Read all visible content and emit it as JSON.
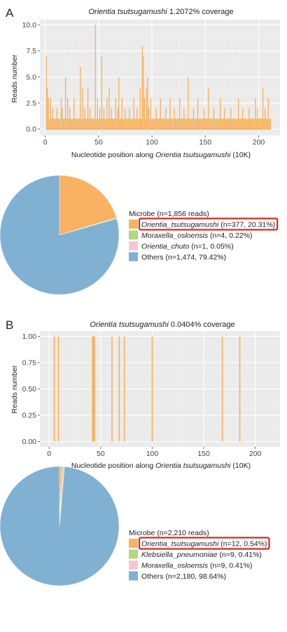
{
  "panels": [
    {
      "letter": "A",
      "coverage": {
        "title_species": "Orientia tsutsugamushi",
        "title_suffix": " 1.2072% coverage",
        "xlabel_prefix": "Nucleotide position along ",
        "xlabel_species": "Orientia tsutsugamushi",
        "xlabel_suffix": " (10K)",
        "ylabel": "Reads number",
        "chart_data": {
          "type": "bar",
          "xlim": [
            -5,
            220
          ],
          "ylim": [
            -0.6,
            10.5
          ],
          "xticks": [
            0,
            50,
            100,
            150,
            200
          ],
          "yticks": [
            "0.0",
            "2.5",
            "5.0",
            "7.5",
            "10.0"
          ],
          "ytick_values": [
            0,
            2.5,
            5,
            7.5,
            10
          ],
          "bar_color": "#f7b15c",
          "grid": true,
          "x": [
            1,
            2,
            3,
            4,
            5,
            6,
            7,
            8,
            9,
            10,
            11,
            12,
            13,
            14,
            15,
            16,
            17,
            18,
            19,
            20,
            21,
            22,
            23,
            24,
            25,
            26,
            27,
            28,
            29,
            30,
            31,
            32,
            33,
            34,
            35,
            36,
            37,
            38,
            39,
            40,
            41,
            42,
            43,
            44,
            45,
            46,
            47,
            48,
            49,
            50,
            51,
            52,
            53,
            54,
            55,
            56,
            57,
            58,
            59,
            60,
            61,
            62,
            63,
            64,
            65,
            66,
            67,
            68,
            69,
            70,
            71,
            72,
            73,
            74,
            75,
            76,
            77,
            78,
            79,
            80,
            81,
            82,
            83,
            84,
            85,
            86,
            87,
            88,
            89,
            90,
            91,
            92,
            93,
            94,
            95,
            96,
            97,
            98,
            99,
            100,
            101,
            102,
            103,
            104,
            105,
            106,
            107,
            108,
            109,
            110,
            111,
            112,
            113,
            114,
            115,
            116,
            117,
            118,
            119,
            120,
            121,
            122,
            123,
            124,
            125,
            126,
            127,
            128,
            129,
            130,
            131,
            132,
            133,
            134,
            135,
            136,
            137,
            138,
            139,
            140,
            141,
            142,
            143,
            144,
            145,
            146,
            147,
            148,
            149,
            150,
            151,
            152,
            153,
            154,
            155,
            156,
            157,
            158,
            159,
            160,
            161,
            162,
            163,
            164,
            165,
            166,
            167,
            168,
            169,
            170,
            171,
            172,
            173,
            174,
            175,
            176,
            177,
            178,
            179,
            180,
            181,
            182,
            183,
            184,
            185,
            186,
            187,
            188,
            189,
            190,
            191,
            192,
            193,
            194,
            195,
            196,
            197,
            198,
            199,
            200,
            201,
            202,
            203,
            204,
            205,
            206,
            207,
            208,
            209,
            210,
            211
          ],
          "values": [
            7,
            4,
            3,
            1,
            3,
            1,
            2,
            1,
            1,
            1,
            2,
            1,
            1,
            1,
            3,
            2,
            1,
            1,
            5,
            1,
            3,
            1,
            2,
            1,
            1,
            1,
            3,
            1,
            1,
            1,
            1,
            1,
            6,
            1,
            4,
            1,
            2,
            1,
            1,
            4,
            1,
            2,
            1,
            1,
            1,
            1,
            10,
            1,
            3,
            1,
            2,
            1,
            7,
            1,
            2,
            1,
            1,
            3,
            1,
            4,
            1,
            2,
            1,
            1,
            1,
            3,
            1,
            2,
            5,
            1,
            1,
            3,
            1,
            1,
            2,
            1,
            1,
            1,
            2,
            1,
            1,
            1,
            3,
            1,
            1,
            2,
            1,
            1,
            4,
            1,
            8,
            7,
            3,
            1,
            4,
            5,
            2,
            1,
            3,
            1,
            1,
            1,
            1,
            2,
            1,
            1,
            1,
            3,
            1,
            1,
            1,
            1,
            2,
            1,
            1,
            1,
            3,
            1,
            1,
            1,
            2,
            1,
            1,
            1,
            1,
            3,
            1,
            1,
            1,
            2,
            1,
            1,
            1,
            5,
            1,
            1,
            1,
            1,
            2,
            1,
            1,
            1,
            3,
            1,
            1,
            1,
            1,
            1,
            2,
            1,
            1,
            1,
            4,
            1,
            1,
            1,
            1,
            2,
            1,
            1,
            1,
            1,
            1,
            3,
            1,
            1,
            1,
            2,
            1,
            1,
            1,
            1,
            1,
            2,
            1,
            1,
            1,
            1,
            1,
            1,
            3,
            1,
            1,
            1,
            2,
            1,
            1,
            1,
            1,
            1,
            2,
            1,
            1,
            1,
            1,
            1,
            3,
            1,
            2,
            1,
            1,
            1,
            1,
            4,
            1,
            2,
            1,
            1,
            3,
            1,
            1
          ]
        }
      },
      "pie": {
        "legend_title": "Microbe (n=1,856 reads)",
        "chart_data": {
          "type": "pie",
          "slices": [
            {
              "italic": "Orientia_tsutsugamushi",
              "stat": " (n=377, 20.31%)",
              "value": 20.31,
              "color": "#f8b262",
              "highlight": true
            },
            {
              "italic": "Moraxella_osloensis",
              "stat": " (n=4, 0.22%)",
              "value": 0.22,
              "color": "#b3d77e",
              "highlight": false
            },
            {
              "italic": "Orientia_chuto",
              "stat": " (n=1, 0.05%)",
              "value": 0.05,
              "color": "#f6c6d6",
              "highlight": false
            },
            {
              "italic": "",
              "plain": "Others",
              "stat": " (n=1,474, 79.42%)",
              "value": 79.42,
              "color": "#80b1d2",
              "highlight": false
            }
          ]
        }
      }
    },
    {
      "letter": "B",
      "coverage": {
        "title_species": "Orientia tsutsugamushi",
        "title_suffix": " 0.0404% coverage",
        "xlabel_prefix": "Nucleotide position along ",
        "xlabel_species": "Orientia tsutsugamushi",
        "xlabel_suffix": " (10K)",
        "ylabel": "Reads number",
        "chart_data": {
          "type": "bar",
          "xlim": [
            -9,
            224
          ],
          "ylim": [
            -0.05,
            1.05
          ],
          "xticks": [
            0,
            50,
            100,
            150,
            200
          ],
          "yticks": [
            "0.00",
            "0.25",
            "0.50",
            "0.75",
            "1.00"
          ],
          "ytick_values": [
            0,
            0.25,
            0.5,
            0.75,
            1
          ],
          "bar_color": "#f7b15c",
          "grid": true,
          "x": [
            5,
            9,
            42,
            43,
            44,
            61,
            68,
            73,
            100,
            168,
            185
          ],
          "values": [
            1,
            1,
            1,
            1,
            1,
            1,
            1,
            1,
            1,
            1,
            1
          ]
        }
      },
      "pie": {
        "legend_title": "Microbe (n=2,210 reads)",
        "chart_data": {
          "type": "pie",
          "slices": [
            {
              "italic": "Orientia_tsutsugamushi",
              "stat": " (n=12, 0.54%)",
              "value": 0.54,
              "color": "#f8b262",
              "highlight": true
            },
            {
              "italic": "Klebsiella_pneumoniae",
              "stat": " (n=9, 0.41%)",
              "value": 0.41,
              "color": "#b3d77e",
              "highlight": false
            },
            {
              "italic": "Moraxella_osloensis",
              "stat": " (n=9, 0.41%)",
              "value": 0.41,
              "color": "#f6c6d6",
              "highlight": false
            },
            {
              "italic": "",
              "plain": "Others",
              "stat": " (n=2,180, 98.64%)",
              "value": 98.64,
              "color": "#80b1d2",
              "highlight": false
            }
          ]
        }
      }
    }
  ],
  "colors": {
    "highlight_box": "#d42a22",
    "panel_bg": "#ebebeb",
    "grid": "#ffffff"
  }
}
